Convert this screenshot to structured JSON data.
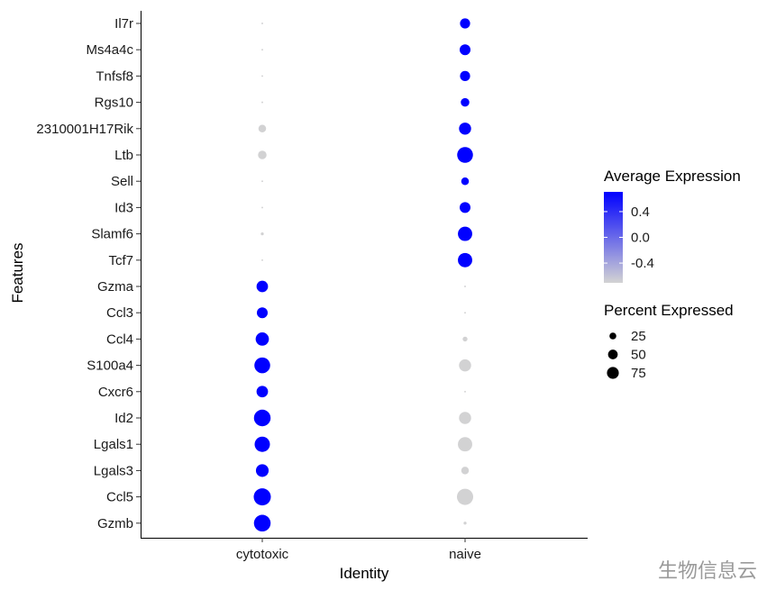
{
  "chart_data": {
    "type": "scatter",
    "subtype": "dot-plot",
    "xlabel": "Identity",
    "ylabel": "Features",
    "x_categories": [
      "cytotoxic",
      "naive"
    ],
    "features": [
      "Il7r",
      "Ms4a4c",
      "Tnfsf8",
      "Rgs10",
      "2310001H17Rik",
      "Ltb",
      "Sell",
      "Id3",
      "Slamf6",
      "Tcf7",
      "Gzma",
      "Ccl3",
      "Ccl4",
      "S100a4",
      "Cxcr6",
      "Id2",
      "Lgals1",
      "Lgals3",
      "Ccl5",
      "Gzmb"
    ],
    "points": [
      {
        "feature": "Il7r",
        "identity": "cytotoxic",
        "avg_exp": -0.7,
        "pct_exp": 1
      },
      {
        "feature": "Il7r",
        "identity": "naive",
        "avg_exp": 0.7,
        "pct_exp": 35
      },
      {
        "feature": "Ms4a4c",
        "identity": "cytotoxic",
        "avg_exp": -0.7,
        "pct_exp": 1
      },
      {
        "feature": "Ms4a4c",
        "identity": "naive",
        "avg_exp": 0.7,
        "pct_exp": 40
      },
      {
        "feature": "Tnfsf8",
        "identity": "cytotoxic",
        "avg_exp": -0.7,
        "pct_exp": 1
      },
      {
        "feature": "Tnfsf8",
        "identity": "naive",
        "avg_exp": 0.7,
        "pct_exp": 35
      },
      {
        "feature": "Rgs10",
        "identity": "cytotoxic",
        "avg_exp": -0.7,
        "pct_exp": 1
      },
      {
        "feature": "Rgs10",
        "identity": "naive",
        "avg_exp": 0.7,
        "pct_exp": 25
      },
      {
        "feature": "2310001H17Rik",
        "identity": "cytotoxic",
        "avg_exp": -0.7,
        "pct_exp": 20
      },
      {
        "feature": "2310001H17Rik",
        "identity": "naive",
        "avg_exp": 0.7,
        "pct_exp": 50
      },
      {
        "feature": "Ltb",
        "identity": "cytotoxic",
        "avg_exp": -0.7,
        "pct_exp": 25
      },
      {
        "feature": "Ltb",
        "identity": "naive",
        "avg_exp": 0.7,
        "pct_exp": 85
      },
      {
        "feature": "Sell",
        "identity": "cytotoxic",
        "avg_exp": -0.7,
        "pct_exp": 1
      },
      {
        "feature": "Sell",
        "identity": "naive",
        "avg_exp": 0.7,
        "pct_exp": 20
      },
      {
        "feature": "Id3",
        "identity": "cytotoxic",
        "avg_exp": -0.7,
        "pct_exp": 1
      },
      {
        "feature": "Id3",
        "identity": "naive",
        "avg_exp": 0.7,
        "pct_exp": 40
      },
      {
        "feature": "Slamf6",
        "identity": "cytotoxic",
        "avg_exp": -0.7,
        "pct_exp": 3
      },
      {
        "feature": "Slamf6",
        "identity": "naive",
        "avg_exp": 0.7,
        "pct_exp": 70
      },
      {
        "feature": "Tcf7",
        "identity": "cytotoxic",
        "avg_exp": -0.7,
        "pct_exp": 1
      },
      {
        "feature": "Tcf7",
        "identity": "naive",
        "avg_exp": 0.7,
        "pct_exp": 70
      },
      {
        "feature": "Gzma",
        "identity": "cytotoxic",
        "avg_exp": 0.7,
        "pct_exp": 45
      },
      {
        "feature": "Gzma",
        "identity": "naive",
        "avg_exp": -0.7,
        "pct_exp": 1
      },
      {
        "feature": "Ccl3",
        "identity": "cytotoxic",
        "avg_exp": 0.7,
        "pct_exp": 40
      },
      {
        "feature": "Ccl3",
        "identity": "naive",
        "avg_exp": -0.7,
        "pct_exp": 1
      },
      {
        "feature": "Ccl4",
        "identity": "cytotoxic",
        "avg_exp": 0.7,
        "pct_exp": 60
      },
      {
        "feature": "Ccl4",
        "identity": "naive",
        "avg_exp": -0.7,
        "pct_exp": 8
      },
      {
        "feature": "S100a4",
        "identity": "cytotoxic",
        "avg_exp": 0.7,
        "pct_exp": 85
      },
      {
        "feature": "S100a4",
        "identity": "naive",
        "avg_exp": -0.7,
        "pct_exp": 50
      },
      {
        "feature": "Cxcr6",
        "identity": "cytotoxic",
        "avg_exp": 0.7,
        "pct_exp": 45
      },
      {
        "feature": "Cxcr6",
        "identity": "naive",
        "avg_exp": -0.7,
        "pct_exp": 1
      },
      {
        "feature": "Id2",
        "identity": "cytotoxic",
        "avg_exp": 0.7,
        "pct_exp": 95
      },
      {
        "feature": "Id2",
        "identity": "naive",
        "avg_exp": -0.7,
        "pct_exp": 50
      },
      {
        "feature": "Lgals1",
        "identity": "cytotoxic",
        "avg_exp": 0.7,
        "pct_exp": 80
      },
      {
        "feature": "Lgals1",
        "identity": "naive",
        "avg_exp": -0.7,
        "pct_exp": 70
      },
      {
        "feature": "Lgals3",
        "identity": "cytotoxic",
        "avg_exp": 0.7,
        "pct_exp": 55
      },
      {
        "feature": "Lgals3",
        "identity": "naive",
        "avg_exp": -0.7,
        "pct_exp": 20
      },
      {
        "feature": "Ccl5",
        "identity": "cytotoxic",
        "avg_exp": 0.7,
        "pct_exp": 100
      },
      {
        "feature": "Ccl5",
        "identity": "naive",
        "avg_exp": -0.7,
        "pct_exp": 90
      },
      {
        "feature": "Gzmb",
        "identity": "cytotoxic",
        "avg_exp": 0.7,
        "pct_exp": 95
      },
      {
        "feature": "Gzmb",
        "identity": "naive",
        "avg_exp": -0.7,
        "pct_exp": 3
      }
    ],
    "color_scale": {
      "title": "Average Expression",
      "low": -0.707,
      "high": 0.707,
      "low_color": "#d3d3d3",
      "high_color": "#0000ff",
      "breaks": [
        0.4,
        0.0,
        -0.4
      ],
      "break_labels": [
        "0.4",
        "0.0",
        "-0.4"
      ]
    },
    "size_scale": {
      "title": "Percent Expressed",
      "max_pct": 100,
      "breaks": [
        25,
        50,
        75
      ],
      "break_labels": [
        "25",
        "50",
        "75"
      ],
      "legend_color": "#000000"
    },
    "grid": false,
    "legend_position": "right"
  },
  "watermark": "生物信息云"
}
